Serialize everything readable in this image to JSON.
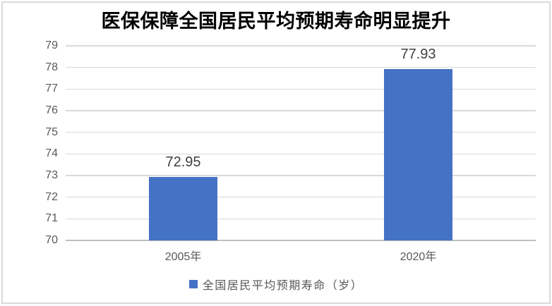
{
  "chart_data": {
    "type": "bar",
    "title": "医保保障全国居民平均预期寿命明显提升",
    "categories": [
      "2005年",
      "2020年"
    ],
    "series": [
      {
        "name": "全国居民平均预期寿命（岁）",
        "values": [
          72.95,
          77.93
        ]
      }
    ],
    "data_labels": [
      "72.95",
      "77.93"
    ],
    "xlabel": "",
    "ylabel": "",
    "ylim": [
      70,
      79
    ],
    "yticks": [
      70,
      71,
      72,
      73,
      74,
      75,
      76,
      77,
      78,
      79
    ],
    "grid": true,
    "legend_position": "bottom",
    "colors": {
      "bar": "#4472C4",
      "gridline": "#D9D9D9",
      "axis_line": "#BFBFBF",
      "axis_label": "#595959",
      "data_label": "#404040",
      "title": "#000000",
      "frame_border": "#D9D9D9",
      "background": "#FFFFFF"
    }
  }
}
